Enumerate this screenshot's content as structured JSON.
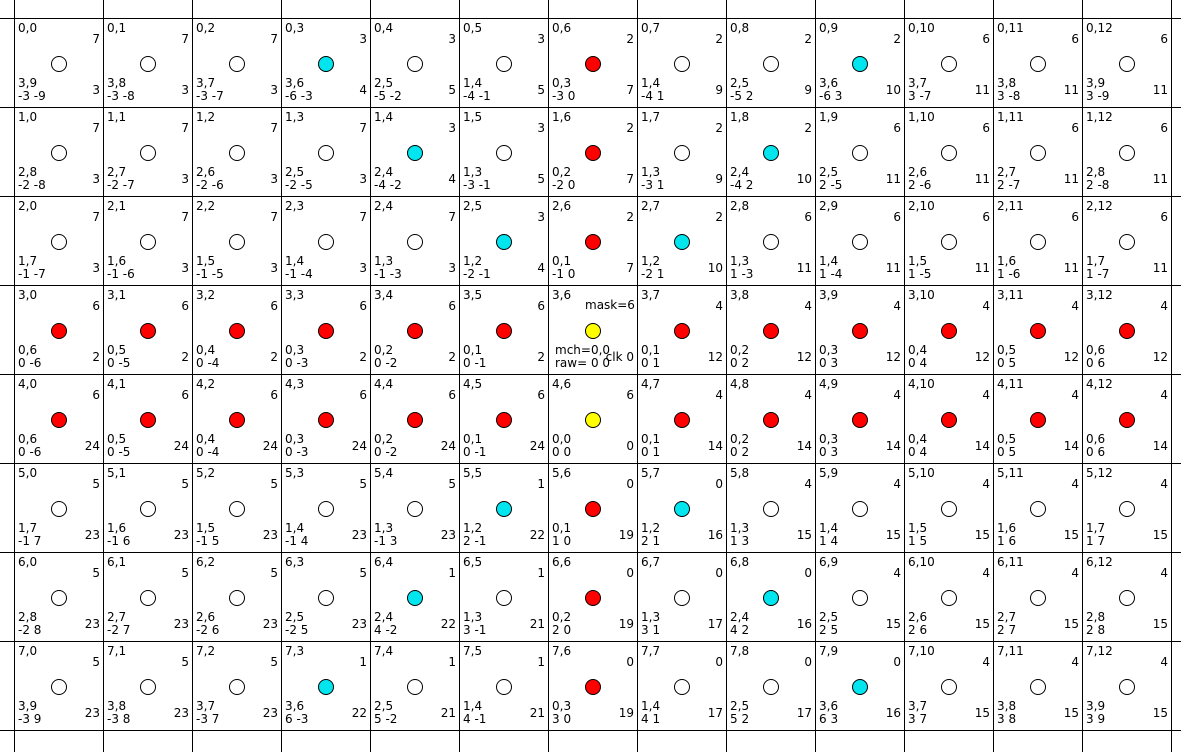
{
  "colors": {
    "white": "#ffffff",
    "red": "#ff0000",
    "cyan": "#00e5ee",
    "yellow": "#ffff00"
  },
  "rows": [
    [
      {
        "p": "0,0",
        "a": "7",
        "m": "3,9",
        "s": "-3 -9",
        "b": "3",
        "c": "white"
      },
      {
        "p": "0,1",
        "a": "7",
        "m": "3,8",
        "s": "-3 -8",
        "b": "3",
        "c": "white"
      },
      {
        "p": "0,2",
        "a": "7",
        "m": "3,7",
        "s": "-3 -7",
        "b": "3",
        "c": "white"
      },
      {
        "p": "0,3",
        "a": "3",
        "m": "3,6",
        "s": "-6 -3",
        "b": "4",
        "c": "cyan"
      },
      {
        "p": "0,4",
        "a": "3",
        "m": "2,5",
        "s": "-5 -2",
        "b": "5",
        "c": "white"
      },
      {
        "p": "0,5",
        "a": "3",
        "m": "1,4",
        "s": "-4 -1",
        "b": "5",
        "c": "white"
      },
      {
        "p": "0,6",
        "a": "2",
        "m": "0,3",
        "s": "-3 0",
        "b": "7",
        "c": "red"
      },
      {
        "p": "0,7",
        "a": "2",
        "m": "1,4",
        "s": "-4 1",
        "b": "9",
        "c": "white"
      },
      {
        "p": "0,8",
        "a": "2",
        "m": "2,5",
        "s": "-5 2",
        "b": "9",
        "c": "white"
      },
      {
        "p": "0,9",
        "a": "2",
        "m": "3,6",
        "s": "-6 3",
        "b": "10",
        "c": "cyan"
      },
      {
        "p": "0,10",
        "a": "6",
        "m": "3,7",
        "s": "3 -7",
        "b": "11",
        "c": "white"
      },
      {
        "p": "0,11",
        "a": "6",
        "m": "3,8",
        "s": "3 -8",
        "b": "11",
        "c": "white"
      },
      {
        "p": "0,12",
        "a": "6",
        "m": "3,9",
        "s": "3 -9",
        "b": "11",
        "c": "white"
      }
    ],
    [
      {
        "p": "1,0",
        "a": "7",
        "m": "2,8",
        "s": "-2 -8",
        "b": "3",
        "c": "white"
      },
      {
        "p": "1,1",
        "a": "7",
        "m": "2,7",
        "s": "-2 -7",
        "b": "3",
        "c": "white"
      },
      {
        "p": "1,2",
        "a": "7",
        "m": "2,6",
        "s": "-2 -6",
        "b": "3",
        "c": "white"
      },
      {
        "p": "1,3",
        "a": "7",
        "m": "2,5",
        "s": "-2 -5",
        "b": "3",
        "c": "white"
      },
      {
        "p": "1,4",
        "a": "3",
        "m": "2,4",
        "s": "-4 -2",
        "b": "4",
        "c": "cyan"
      },
      {
        "p": "1,5",
        "a": "3",
        "m": "1,3",
        "s": "-3 -1",
        "b": "5",
        "c": "white"
      },
      {
        "p": "1,6",
        "a": "2",
        "m": "0,2",
        "s": "-2 0",
        "b": "7",
        "c": "red"
      },
      {
        "p": "1,7",
        "a": "2",
        "m": "1,3",
        "s": "-3 1",
        "b": "9",
        "c": "white"
      },
      {
        "p": "1,8",
        "a": "2",
        "m": "2,4",
        "s": "-4 2",
        "b": "10",
        "c": "cyan"
      },
      {
        "p": "1,9",
        "a": "6",
        "m": "2,5",
        "s": "2 -5",
        "b": "11",
        "c": "white"
      },
      {
        "p": "1,10",
        "a": "6",
        "m": "2,6",
        "s": "2 -6",
        "b": "11",
        "c": "white"
      },
      {
        "p": "1,11",
        "a": "6",
        "m": "2,7",
        "s": "2 -7",
        "b": "11",
        "c": "white"
      },
      {
        "p": "1,12",
        "a": "6",
        "m": "2,8",
        "s": "2 -8",
        "b": "11",
        "c": "white"
      }
    ],
    [
      {
        "p": "2,0",
        "a": "7",
        "m": "1,7",
        "s": "-1 -7",
        "b": "3",
        "c": "white"
      },
      {
        "p": "2,1",
        "a": "7",
        "m": "1,6",
        "s": "-1 -6",
        "b": "3",
        "c": "white"
      },
      {
        "p": "2,2",
        "a": "7",
        "m": "1,5",
        "s": "-1 -5",
        "b": "3",
        "c": "white"
      },
      {
        "p": "2,3",
        "a": "7",
        "m": "1,4",
        "s": "-1 -4",
        "b": "3",
        "c": "white"
      },
      {
        "p": "2,4",
        "a": "7",
        "m": "1,3",
        "s": "-1 -3",
        "b": "3",
        "c": "white"
      },
      {
        "p": "2,5",
        "a": "3",
        "m": "1,2",
        "s": "-2 -1",
        "b": "4",
        "c": "cyan"
      },
      {
        "p": "2,6",
        "a": "2",
        "m": "0,1",
        "s": "-1 0",
        "b": "7",
        "c": "red"
      },
      {
        "p": "2,7",
        "a": "2",
        "m": "1,2",
        "s": "-2 1",
        "b": "10",
        "c": "cyan"
      },
      {
        "p": "2,8",
        "a": "6",
        "m": "1,3",
        "s": "1 -3",
        "b": "11",
        "c": "white"
      },
      {
        "p": "2,9",
        "a": "6",
        "m": "1,4",
        "s": "1 -4",
        "b": "11",
        "c": "white"
      },
      {
        "p": "2,10",
        "a": "6",
        "m": "1,5",
        "s": "1 -5",
        "b": "11",
        "c": "white"
      },
      {
        "p": "2,11",
        "a": "6",
        "m": "1,6",
        "s": "1 -6",
        "b": "11",
        "c": "white"
      },
      {
        "p": "2,12",
        "a": "6",
        "m": "1,7",
        "s": "1 -7",
        "b": "11",
        "c": "white"
      }
    ],
    [
      {
        "p": "3,0",
        "a": "6",
        "m": "0,6",
        "s": "0 -6",
        "b": "2",
        "c": "red"
      },
      {
        "p": "3,1",
        "a": "6",
        "m": "0,5",
        "s": "0 -5",
        "b": "2",
        "c": "red"
      },
      {
        "p": "3,2",
        "a": "6",
        "m": "0,4",
        "s": "0 -4",
        "b": "2",
        "c": "red"
      },
      {
        "p": "3,3",
        "a": "6",
        "m": "0,3",
        "s": "0 -3",
        "b": "2",
        "c": "red"
      },
      {
        "p": "3,4",
        "a": "6",
        "m": "0,2",
        "s": "0 -2",
        "b": "2",
        "c": "red"
      },
      {
        "p": "3,5",
        "a": "6",
        "m": "0,1",
        "s": "0 -1",
        "b": "2",
        "c": "red"
      },
      {
        "p": "3,6",
        "c": "yellow",
        "center": true,
        "mask": "mask=6",
        "mch": "mch=0,0",
        "raw": "raw= 0 0",
        "clk": "clk 0"
      },
      {
        "p": "3,7",
        "a": "4",
        "m": "0,1",
        "s": "0 1",
        "b": "12",
        "c": "red"
      },
      {
        "p": "3,8",
        "a": "4",
        "m": "0,2",
        "s": "0 2",
        "b": "12",
        "c": "red"
      },
      {
        "p": "3,9",
        "a": "4",
        "m": "0,3",
        "s": "0 3",
        "b": "12",
        "c": "red"
      },
      {
        "p": "3,10",
        "a": "4",
        "m": "0,4",
        "s": "0 4",
        "b": "12",
        "c": "red"
      },
      {
        "p": "3,11",
        "a": "4",
        "m": "0,5",
        "s": "0 5",
        "b": "12",
        "c": "red"
      },
      {
        "p": "3,12",
        "a": "4",
        "m": "0,6",
        "s": "0 6",
        "b": "12",
        "c": "red"
      }
    ],
    [
      {
        "p": "4,0",
        "a": "6",
        "m": "0,6",
        "s": "0 -6",
        "b": "24",
        "c": "red"
      },
      {
        "p": "4,1",
        "a": "6",
        "m": "0,5",
        "s": "0 -5",
        "b": "24",
        "c": "red"
      },
      {
        "p": "4,2",
        "a": "6",
        "m": "0,4",
        "s": "0 -4",
        "b": "24",
        "c": "red"
      },
      {
        "p": "4,3",
        "a": "6",
        "m": "0,3",
        "s": "0 -3",
        "b": "24",
        "c": "red"
      },
      {
        "p": "4,4",
        "a": "6",
        "m": "0,2",
        "s": "0 -2",
        "b": "24",
        "c": "red"
      },
      {
        "p": "4,5",
        "a": "6",
        "m": "0,1",
        "s": "0 -1",
        "b": "24",
        "c": "red"
      },
      {
        "p": "4,6",
        "a": "6",
        "m": "0,0",
        "s": "0 0",
        "b": "0",
        "c": "yellow"
      },
      {
        "p": "4,7",
        "a": "4",
        "m": "0,1",
        "s": "0 1",
        "b": "14",
        "c": "red"
      },
      {
        "p": "4,8",
        "a": "4",
        "m": "0,2",
        "s": "0 2",
        "b": "14",
        "c": "red"
      },
      {
        "p": "4,9",
        "a": "4",
        "m": "0,3",
        "s": "0 3",
        "b": "14",
        "c": "red"
      },
      {
        "p": "4,10",
        "a": "4",
        "m": "0,4",
        "s": "0 4",
        "b": "14",
        "c": "red"
      },
      {
        "p": "4,11",
        "a": "4",
        "m": "0,5",
        "s": "0 5",
        "b": "14",
        "c": "red"
      },
      {
        "p": "4,12",
        "a": "4",
        "m": "0,6",
        "s": "0 6",
        "b": "14",
        "c": "red"
      }
    ],
    [
      {
        "p": "5,0",
        "a": "5",
        "m": "1,7",
        "s": "-1 7",
        "b": "23",
        "c": "white"
      },
      {
        "p": "5,1",
        "a": "5",
        "m": "1,6",
        "s": "-1 6",
        "b": "23",
        "c": "white"
      },
      {
        "p": "5,2",
        "a": "5",
        "m": "1,5",
        "s": "-1 5",
        "b": "23",
        "c": "white"
      },
      {
        "p": "5,3",
        "a": "5",
        "m": "1,4",
        "s": "-1 4",
        "b": "23",
        "c": "white"
      },
      {
        "p": "5,4",
        "a": "5",
        "m": "1,3",
        "s": "-1 3",
        "b": "23",
        "c": "white"
      },
      {
        "p": "5,5",
        "a": "1",
        "m": "1,2",
        "s": "2 -1",
        "b": "22",
        "c": "cyan"
      },
      {
        "p": "5,6",
        "a": "0",
        "m": "0,1",
        "s": "1 0",
        "b": "19",
        "c": "red"
      },
      {
        "p": "5,7",
        "a": "0",
        "m": "1,2",
        "s": "2 1",
        "b": "16",
        "c": "cyan"
      },
      {
        "p": "5,8",
        "a": "4",
        "m": "1,3",
        "s": "1 3",
        "b": "15",
        "c": "white"
      },
      {
        "p": "5,9",
        "a": "4",
        "m": "1,4",
        "s": "1 4",
        "b": "15",
        "c": "white"
      },
      {
        "p": "5,10",
        "a": "4",
        "m": "1,5",
        "s": "1 5",
        "b": "15",
        "c": "white"
      },
      {
        "p": "5,11",
        "a": "4",
        "m": "1,6",
        "s": "1 6",
        "b": "15",
        "c": "white"
      },
      {
        "p": "5,12",
        "a": "4",
        "m": "1,7",
        "s": "1 7",
        "b": "15",
        "c": "white"
      }
    ],
    [
      {
        "p": "6,0",
        "a": "5",
        "m": "2,8",
        "s": "-2 8",
        "b": "23",
        "c": "white"
      },
      {
        "p": "6,1",
        "a": "5",
        "m": "2,7",
        "s": "-2 7",
        "b": "23",
        "c": "white"
      },
      {
        "p": "6,2",
        "a": "5",
        "m": "2,6",
        "s": "-2 6",
        "b": "23",
        "c": "white"
      },
      {
        "p": "6,3",
        "a": "5",
        "m": "2,5",
        "s": "-2 5",
        "b": "23",
        "c": "white"
      },
      {
        "p": "6,4",
        "a": "1",
        "m": "2,4",
        "s": "4 -2",
        "b": "22",
        "c": "cyan"
      },
      {
        "p": "6,5",
        "a": "1",
        "m": "1,3",
        "s": "3 -1",
        "b": "21",
        "c": "white"
      },
      {
        "p": "6,6",
        "a": "0",
        "m": "0,2",
        "s": "2 0",
        "b": "19",
        "c": "red"
      },
      {
        "p": "6,7",
        "a": "0",
        "m": "1,3",
        "s": "3 1",
        "b": "17",
        "c": "white"
      },
      {
        "p": "6,8",
        "a": "0",
        "m": "2,4",
        "s": "4 2",
        "b": "16",
        "c": "cyan"
      },
      {
        "p": "6,9",
        "a": "4",
        "m": "2,5",
        "s": "2 5",
        "b": "15",
        "c": "white"
      },
      {
        "p": "6,10",
        "a": "4",
        "m": "2,6",
        "s": "2 6",
        "b": "15",
        "c": "white"
      },
      {
        "p": "6,11",
        "a": "4",
        "m": "2,7",
        "s": "2 7",
        "b": "15",
        "c": "white"
      },
      {
        "p": "6,12",
        "a": "4",
        "m": "2,8",
        "s": "2 8",
        "b": "15",
        "c": "white"
      }
    ],
    [
      {
        "p": "7,0",
        "a": "5",
        "m": "3,9",
        "s": "-3 9",
        "b": "23",
        "c": "white"
      },
      {
        "p": "7,1",
        "a": "5",
        "m": "3,8",
        "s": "-3 8",
        "b": "23",
        "c": "white"
      },
      {
        "p": "7,2",
        "a": "5",
        "m": "3,7",
        "s": "-3 7",
        "b": "23",
        "c": "white"
      },
      {
        "p": "7,3",
        "a": "1",
        "m": "3,6",
        "s": "6 -3",
        "b": "22",
        "c": "cyan"
      },
      {
        "p": "7,4",
        "a": "1",
        "m": "2,5",
        "s": "5 -2",
        "b": "21",
        "c": "white"
      },
      {
        "p": "7,5",
        "a": "1",
        "m": "1,4",
        "s": "4 -1",
        "b": "21",
        "c": "white"
      },
      {
        "p": "7,6",
        "a": "0",
        "m": "0,3",
        "s": "3 0",
        "b": "19",
        "c": "red"
      },
      {
        "p": "7,7",
        "a": "0",
        "m": "1,4",
        "s": "4 1",
        "b": "17",
        "c": "white"
      },
      {
        "p": "7,8",
        "a": "0",
        "m": "2,5",
        "s": "5 2",
        "b": "17",
        "c": "white"
      },
      {
        "p": "7,9",
        "a": "0",
        "m": "3,6",
        "s": "6 3",
        "b": "16",
        "c": "cyan"
      },
      {
        "p": "7,10",
        "a": "4",
        "m": "3,7",
        "s": "3 7",
        "b": "15",
        "c": "white"
      },
      {
        "p": "7,11",
        "a": "4",
        "m": "3,8",
        "s": "3 8",
        "b": "15",
        "c": "white"
      },
      {
        "p": "7,12",
        "a": "4",
        "m": "3,9",
        "s": "3 9",
        "b": "15",
        "c": "white"
      }
    ]
  ]
}
